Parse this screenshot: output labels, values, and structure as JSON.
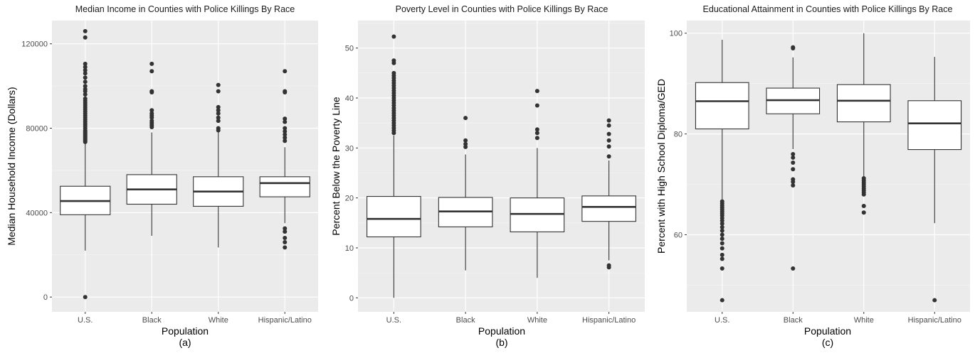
{
  "chart_data": [
    {
      "type": "box",
      "title": "Median Income in Counties with Police Killings By Race",
      "xlabel": "Population",
      "caption": "(a)",
      "ylabel": "Median Household Income (Dollars)",
      "ylim": [
        -7000,
        131000
      ],
      "yticks": [
        0,
        40000,
        80000,
        120000
      ],
      "ytick_labels": [
        "0",
        "40000",
        "80000",
        "120000"
      ],
      "categories": [
        "U.S.",
        "Black",
        "White",
        "Hispanic/Latino"
      ],
      "boxes": [
        {
          "category": "U.S.",
          "whisker_low": 22000,
          "q1": 39000,
          "median": 45500,
          "q3": 52500,
          "whisker_high": 73000,
          "outliers": [
            0,
            73500,
            74000,
            74500,
            75000,
            75500,
            76000,
            76500,
            77000,
            77500,
            78000,
            78500,
            79000,
            80000,
            81000,
            82000,
            83000,
            84000,
            85000,
            86000,
            87000,
            88000,
            89000,
            90000,
            91000,
            92000,
            93000,
            94000,
            96000,
            97500,
            98500,
            100000,
            102000,
            104000,
            106000,
            107500,
            109000,
            110500,
            123000,
            126000
          ]
        },
        {
          "category": "Black",
          "whisker_low": 29000,
          "q1": 44000,
          "median": 51000,
          "q3": 58000,
          "whisker_high": 78000,
          "outliers": [
            80500,
            81500,
            82500,
            83500,
            85000,
            86000,
            87000,
            88500,
            97000,
            97500,
            107000,
            110500
          ]
        },
        {
          "category": "White",
          "whisker_low": 23500,
          "q1": 43000,
          "median": 50000,
          "q3": 57000,
          "whisker_high": 78000,
          "outliers": [
            79000,
            80000,
            83500,
            85000,
            87000,
            88500,
            90000,
            97500,
            100500
          ]
        },
        {
          "category": "Hispanic/Latino",
          "whisker_low": 35000,
          "q1": 47500,
          "median": 54000,
          "q3": 57000,
          "whisker_high": 71000,
          "outliers": [
            23500,
            26000,
            28000,
            31000,
            32500,
            74000,
            75500,
            77000,
            78500,
            80000,
            83000,
            84500,
            97000,
            97500,
            107000
          ]
        }
      ]
    },
    {
      "type": "box",
      "title": "Poverty Level in Counties with Police Killings By Race",
      "xlabel": "Population",
      "caption": "(b)",
      "ylabel": "Percent Below the Poverty Line",
      "ylim": [
        -2.8,
        55.5
      ],
      "yticks": [
        0,
        10,
        20,
        30,
        40,
        50
      ],
      "ytick_labels": [
        "0",
        "10",
        "20",
        "30",
        "40",
        "50"
      ],
      "categories": [
        "U.S.",
        "Black",
        "White",
        "Hispanic/Latino"
      ],
      "boxes": [
        {
          "category": "U.S.",
          "whisker_low": 0,
          "q1": 12.2,
          "median": 15.8,
          "q3": 20.3,
          "whisker_high": 32.5,
          "outliers": [
            33,
            33.5,
            34,
            34.5,
            35,
            35.5,
            36,
            36.5,
            37,
            37.5,
            38,
            38.5,
            39,
            39.5,
            40,
            40.5,
            41,
            41.5,
            42,
            42.5,
            43,
            43.5,
            44,
            44.5,
            45,
            47,
            47.5,
            52.3
          ]
        },
        {
          "category": "Black",
          "whisker_low": 5.5,
          "q1": 14.2,
          "median": 17.3,
          "q3": 20.1,
          "whisker_high": 28.7,
          "outliers": [
            30.2,
            30.8,
            31.5,
            36
          ]
        },
        {
          "category": "White",
          "whisker_low": 4,
          "q1": 13.2,
          "median": 16.8,
          "q3": 20,
          "whisker_high": 30,
          "outliers": [
            32,
            33,
            33.7,
            38.5,
            41.4
          ]
        },
        {
          "category": "Hispanic/Latino",
          "whisker_low": 7.5,
          "q1": 15.3,
          "median": 18.2,
          "q3": 20.4,
          "whisker_high": 27.5,
          "outliers": [
            6.1,
            6.5,
            28.3,
            30.3,
            31.5,
            32.8,
            34.5,
            35.5
          ]
        }
      ]
    },
    {
      "type": "box",
      "title": "Educational Attainment in Counties with Police Killings By Race",
      "xlabel": "Population",
      "caption": "(c)",
      "ylabel": "Percent with High School Diploma/GED",
      "ylim": [
        44.7,
        102.5
      ],
      "yticks": [
        60,
        80,
        100
      ],
      "ytick_labels": [
        "60",
        "80",
        "100"
      ],
      "categories": [
        "U.S.",
        "Black",
        "White",
        "Hispanic/Latino"
      ],
      "boxes": [
        {
          "category": "U.S.",
          "whisker_low": 67,
          "q1": 81,
          "median": 86.5,
          "q3": 90.2,
          "whisker_high": 98.7,
          "outliers": [
            47,
            53.3,
            55.2,
            56,
            57.3,
            58.3,
            59.2,
            60,
            60.8,
            61.5,
            62.2,
            62.8,
            63.3,
            63.8,
            64.2,
            64.6,
            65,
            65.4,
            65.8,
            66.2,
            66.6
          ]
        },
        {
          "category": "Black",
          "whisker_low": 77,
          "q1": 84,
          "median": 86.7,
          "q3": 89.1,
          "whisker_high": 95.2,
          "outliers": [
            53.3,
            69.8,
            70.5,
            71,
            73,
            74.3,
            75.3,
            76,
            97,
            97.2
          ]
        },
        {
          "category": "White",
          "whisker_low": 71.5,
          "q1": 82.4,
          "median": 86.6,
          "q3": 89.8,
          "whisker_high": 100,
          "outliers": [
            64.4,
            65.7,
            68,
            68.4,
            68.8,
            69.2,
            69.6,
            70,
            70.4,
            70.8,
            71.2
          ]
        },
        {
          "category": "Hispanic/Latino",
          "whisker_low": 62.3,
          "q1": 76.9,
          "median": 82.1,
          "q3": 86.6,
          "whisker_high": 95.3,
          "outliers": [
            47
          ]
        }
      ]
    }
  ]
}
